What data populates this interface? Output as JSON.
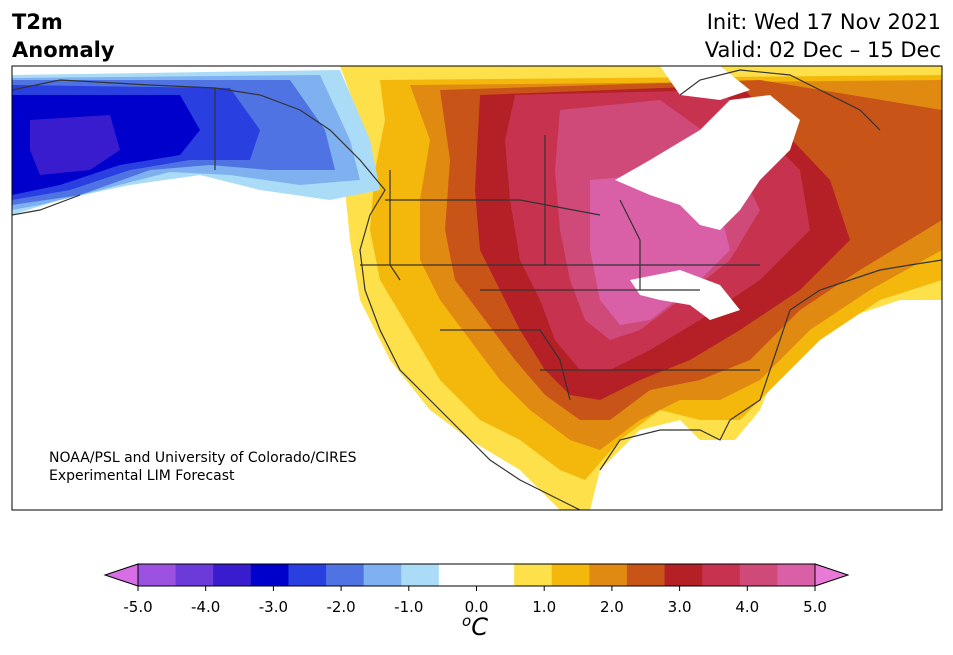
{
  "title": {
    "line1": "T2m",
    "line2": "Anomaly"
  },
  "header_right": {
    "init": "Init: Wed 17 Nov 2021",
    "valid": "Valid: 02 Dec – 15 Dec"
  },
  "credit": {
    "line1": "NOAA/PSL and University of Colorado/CIRES",
    "line2": "Experimental LIM Forecast"
  },
  "colorbar": {
    "tick_labels": [
      "-5.0",
      "-4.0",
      "-3.0",
      "-2.0",
      "-1.0",
      "0.0",
      "1.0",
      "2.0",
      "3.0",
      "4.0",
      "5.0"
    ],
    "unit_prefix": "o",
    "unit_letter": "C",
    "colors": [
      "#d86ee6",
      "#9b52e0",
      "#6b3ad8",
      "#3a1ccf",
      "#0000cc",
      "#2a3fe0",
      "#4f73e3",
      "#7fb0f0",
      "#abdcf7",
      "#ffffff",
      "#ffffff",
      "#fde04a",
      "#f4b80c",
      "#e08a12",
      "#c95418",
      "#b42025",
      "#c7334f",
      "#cf4a78",
      "#d95fa6",
      "#e879d6"
    ],
    "min_value": -5.0,
    "max_value": 5.0,
    "extend": "both"
  },
  "map": {
    "region": "North America",
    "field": "2 m temperature anomaly",
    "land_fill_missing": "#ffffff"
  }
}
